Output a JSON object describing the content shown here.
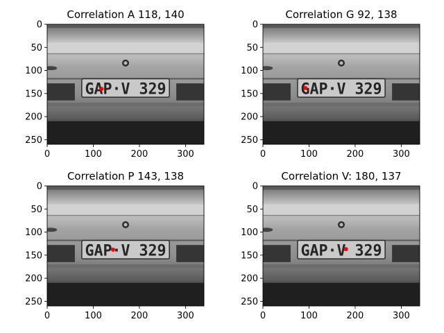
{
  "chart_data": [
    {
      "type": "image",
      "title": "Correlation A  118, 140",
      "marker": {
        "x": 118,
        "y": 140,
        "color": "#ff0000"
      },
      "xlim": [
        0,
        340
      ],
      "ylim": [
        260,
        0
      ],
      "xticks": [
        0,
        100,
        200,
        300
      ],
      "yticks": [
        0,
        50,
        100,
        150,
        200,
        250
      ],
      "image": {
        "plate_text": "GAP·V 329",
        "grayscale": true
      }
    },
    {
      "type": "image",
      "title": "Correlation G  92, 138",
      "marker": {
        "x": 92,
        "y": 138,
        "color": "#ff0000"
      },
      "xlim": [
        0,
        340
      ],
      "ylim": [
        260,
        0
      ],
      "xticks": [
        0,
        100,
        200,
        300
      ],
      "yticks": [
        0,
        50,
        100,
        150,
        200,
        250
      ],
      "image": {
        "plate_text": "GAP·V 329",
        "grayscale": true
      }
    },
    {
      "type": "image",
      "title": "Correlation P  143, 138",
      "marker": {
        "x": 143,
        "y": 138,
        "color": "#ff0000"
      },
      "xlim": [
        0,
        340
      ],
      "ylim": [
        260,
        0
      ],
      "xticks": [
        0,
        100,
        200,
        300
      ],
      "yticks": [
        0,
        50,
        100,
        150,
        200,
        250
      ],
      "image": {
        "plate_text": "GAP·V 329",
        "grayscale": true
      }
    },
    {
      "type": "image",
      "title": "Correlation V:  180, 137",
      "marker": {
        "x": 180,
        "y": 137,
        "color": "#ff0000"
      },
      "xlim": [
        0,
        340
      ],
      "ylim": [
        260,
        0
      ],
      "xticks": [
        0,
        100,
        200,
        300
      ],
      "yticks": [
        0,
        50,
        100,
        150,
        200,
        250
      ],
      "image": {
        "plate_text": "GAP·V 329",
        "grayscale": true
      }
    }
  ]
}
